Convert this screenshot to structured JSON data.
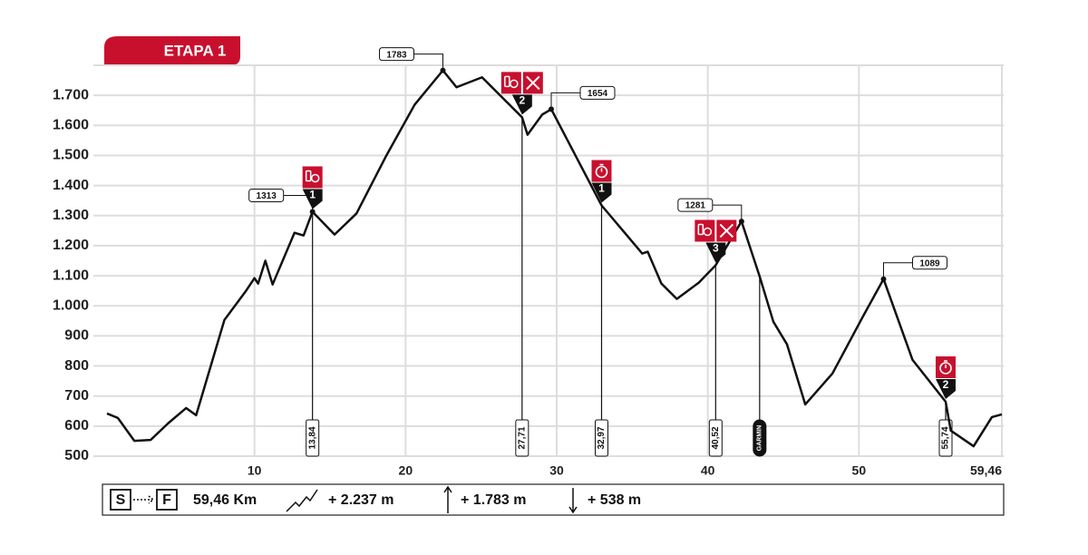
{
  "title": "ETAPA 1",
  "chart_data": {
    "type": "line",
    "color": "#111111",
    "grid": true,
    "xlim": [
      0,
      59.46
    ],
    "ylim": [
      500,
      1800
    ],
    "xticks": [
      10,
      20,
      30,
      40,
      50,
      {
        "value": 59.46,
        "label": "59,46"
      }
    ],
    "yticks": [
      500,
      600,
      700,
      800,
      900,
      {
        "value": 1000,
        "label": "1.000"
      },
      {
        "value": 1100,
        "label": "1.100"
      },
      {
        "value": 1200,
        "label": "1.200"
      },
      {
        "value": 1300,
        "label": "1.300"
      },
      {
        "value": 1400,
        "label": "1.400"
      },
      {
        "value": 1500,
        "label": "1.500"
      },
      {
        "value": 1600,
        "label": "1.600"
      },
      {
        "value": 1700,
        "label": "1.700"
      }
    ],
    "x": [
      0.24,
      0.96,
      2.05,
      3.13,
      4.28,
      5.48,
      6.14,
      8.01,
      9.4,
      10,
      10.24,
      10.72,
      11.2,
      12.65,
      13.25,
      13.84,
      15.3,
      16.75,
      18.73,
      20.6,
      22.47,
      23.37,
      25.06,
      27.71,
      28.07,
      29.04,
      29.64,
      32.97,
      35.66,
      36.02,
      36.93,
      37.95,
      39.4,
      40.52,
      42.23,
      43.43,
      44.34,
      45.24,
      46.45,
      48.25,
      50.24,
      51.63,
      53.55,
      55.74,
      56.08,
      57.59,
      58.8,
      59.46
    ],
    "values": [
      642,
      627,
      551,
      554,
      609,
      660,
      636,
      953,
      1047,
      1092,
      1074,
      1150,
      1071,
      1243,
      1234,
      1313,
      1237,
      1307,
      1500,
      1669,
      1783,
      1727,
      1760,
      1627,
      1569,
      1636,
      1654,
      1334,
      1174,
      1180,
      1074,
      1023,
      1077,
      1135,
      1281,
      1098,
      947,
      872,
      672,
      775,
      962,
      1089,
      820,
      681,
      585,
      533,
      630,
      639
    ],
    "peaks": [
      {
        "x": 22.47,
        "value": 1783,
        "side": "left"
      },
      {
        "x": 29.64,
        "value": 1654,
        "side": "right"
      },
      {
        "x": 13.84,
        "value": 1313,
        "side": "left"
      },
      {
        "x": 42.23,
        "value": 1281,
        "side": "left"
      },
      {
        "x": 51.63,
        "value": 1089,
        "side": "right"
      }
    ],
    "km_markers": [
      {
        "value": 13.84,
        "label": "13,84"
      },
      {
        "value": 27.71,
        "label": "27,71"
      },
      {
        "value": 32.97,
        "label": "32,97"
      },
      {
        "value": 40.52,
        "label": "40,52"
      },
      {
        "value": 43.43,
        "label": "GARMIN"
      },
      {
        "value": 55.74,
        "label": "55,74"
      }
    ],
    "stations": [
      {
        "km": 13.84,
        "icons": [
          "feed"
        ],
        "number": 1
      },
      {
        "km": 27.71,
        "icons": [
          "feed",
          "tools"
        ],
        "number": 2
      },
      {
        "km": 32.97,
        "icons": [
          "timer"
        ],
        "number": 1
      },
      {
        "km": 40.52,
        "icons": [
          "feed",
          "tools"
        ],
        "number": 3
      },
      {
        "km": 55.74,
        "icons": [
          "timer"
        ],
        "number": 2
      }
    ]
  },
  "footer": {
    "start": "S",
    "finish": "F",
    "distance": "59,46 Km",
    "gain": "+ 2.237 m",
    "max": "+ 1.783 m",
    "min": "+ 538 m"
  }
}
